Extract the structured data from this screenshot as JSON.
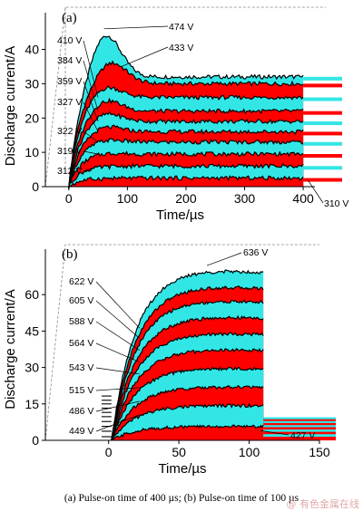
{
  "figure": {
    "caption": "(a)  Pulse-on  time of 400 µs; (b) Pulse-on time of 100 µs",
    "watermark": "@ 有色金属在线",
    "colors": {
      "cyan": "#33e6e6",
      "red": "#ff0000",
      "line": "#000000"
    }
  },
  "chart_data": [
    {
      "panel": "(a)",
      "type": "area",
      "xlabel": "Time/µs",
      "ylabel": "Discharge current/A",
      "xlim": [
        -40,
        420
      ],
      "ylim": [
        0,
        47
      ],
      "xticks": [
        0,
        100,
        200,
        300,
        400
      ],
      "yticks": [
        0,
        10,
        20,
        30,
        40
      ],
      "pulse_on_us": 400,
      "grid": false,
      "series": [
        {
          "name": "474 V",
          "peak_at_us": 60,
          "peak_a": 46,
          "plateau_a": 32
        },
        {
          "name": "433 V",
          "peak_at_us": 70,
          "peak_a": 37,
          "plateau_a": 30
        },
        {
          "name": "410 V",
          "peak_at_us": 60,
          "peak_a": 30,
          "plateau_a": 26
        },
        {
          "name": "384 V",
          "peak_at_us": 60,
          "peak_a": 26,
          "plateau_a": 22
        },
        {
          "name": "359 V",
          "peak_at_us": 60,
          "peak_a": 22,
          "plateau_a": 19
        },
        {
          "name": "327 V",
          "peak_at_us": 60,
          "peak_a": 18,
          "plateau_a": 16
        },
        {
          "name": "322 V",
          "peak_at_us": 60,
          "peak_a": 14,
          "plateau_a": 13
        },
        {
          "name": "319 V",
          "peak_at_us": 60,
          "peak_a": 10,
          "plateau_a": 9.5
        },
        {
          "name": "312 V",
          "peak_at_us": 60,
          "peak_a": 6,
          "plateau_a": 6
        },
        {
          "name": "310 V",
          "peak_at_us": 60,
          "peak_a": 2.5,
          "plateau_a": 2.5
        }
      ]
    },
    {
      "panel": "(b)",
      "type": "area",
      "xlabel": "Time/µs",
      "ylabel": "Discharge current/A",
      "xlim": [
        -45,
        150
      ],
      "ylim": [
        0,
        75
      ],
      "xticks": [
        0,
        50,
        100,
        150
      ],
      "yticks": [
        0,
        15,
        30,
        45,
        60
      ],
      "pulse_on_us": 100,
      "grid": false,
      "series": [
        {
          "name": "636 V",
          "peak_a": 73
        },
        {
          "name": "622 V",
          "peak_a": 66
        },
        {
          "name": "605 V",
          "peak_a": 60
        },
        {
          "name": "588 V",
          "peak_a": 53
        },
        {
          "name": "564 V",
          "peak_a": 46
        },
        {
          "name": "543 V",
          "peak_a": 39
        },
        {
          "name": "515 V",
          "peak_a": 31
        },
        {
          "name": "486 V",
          "peak_a": 23
        },
        {
          "name": "449 V",
          "peak_a": 15
        },
        {
          "name": "427 V",
          "peak_a": 6
        }
      ]
    }
  ]
}
